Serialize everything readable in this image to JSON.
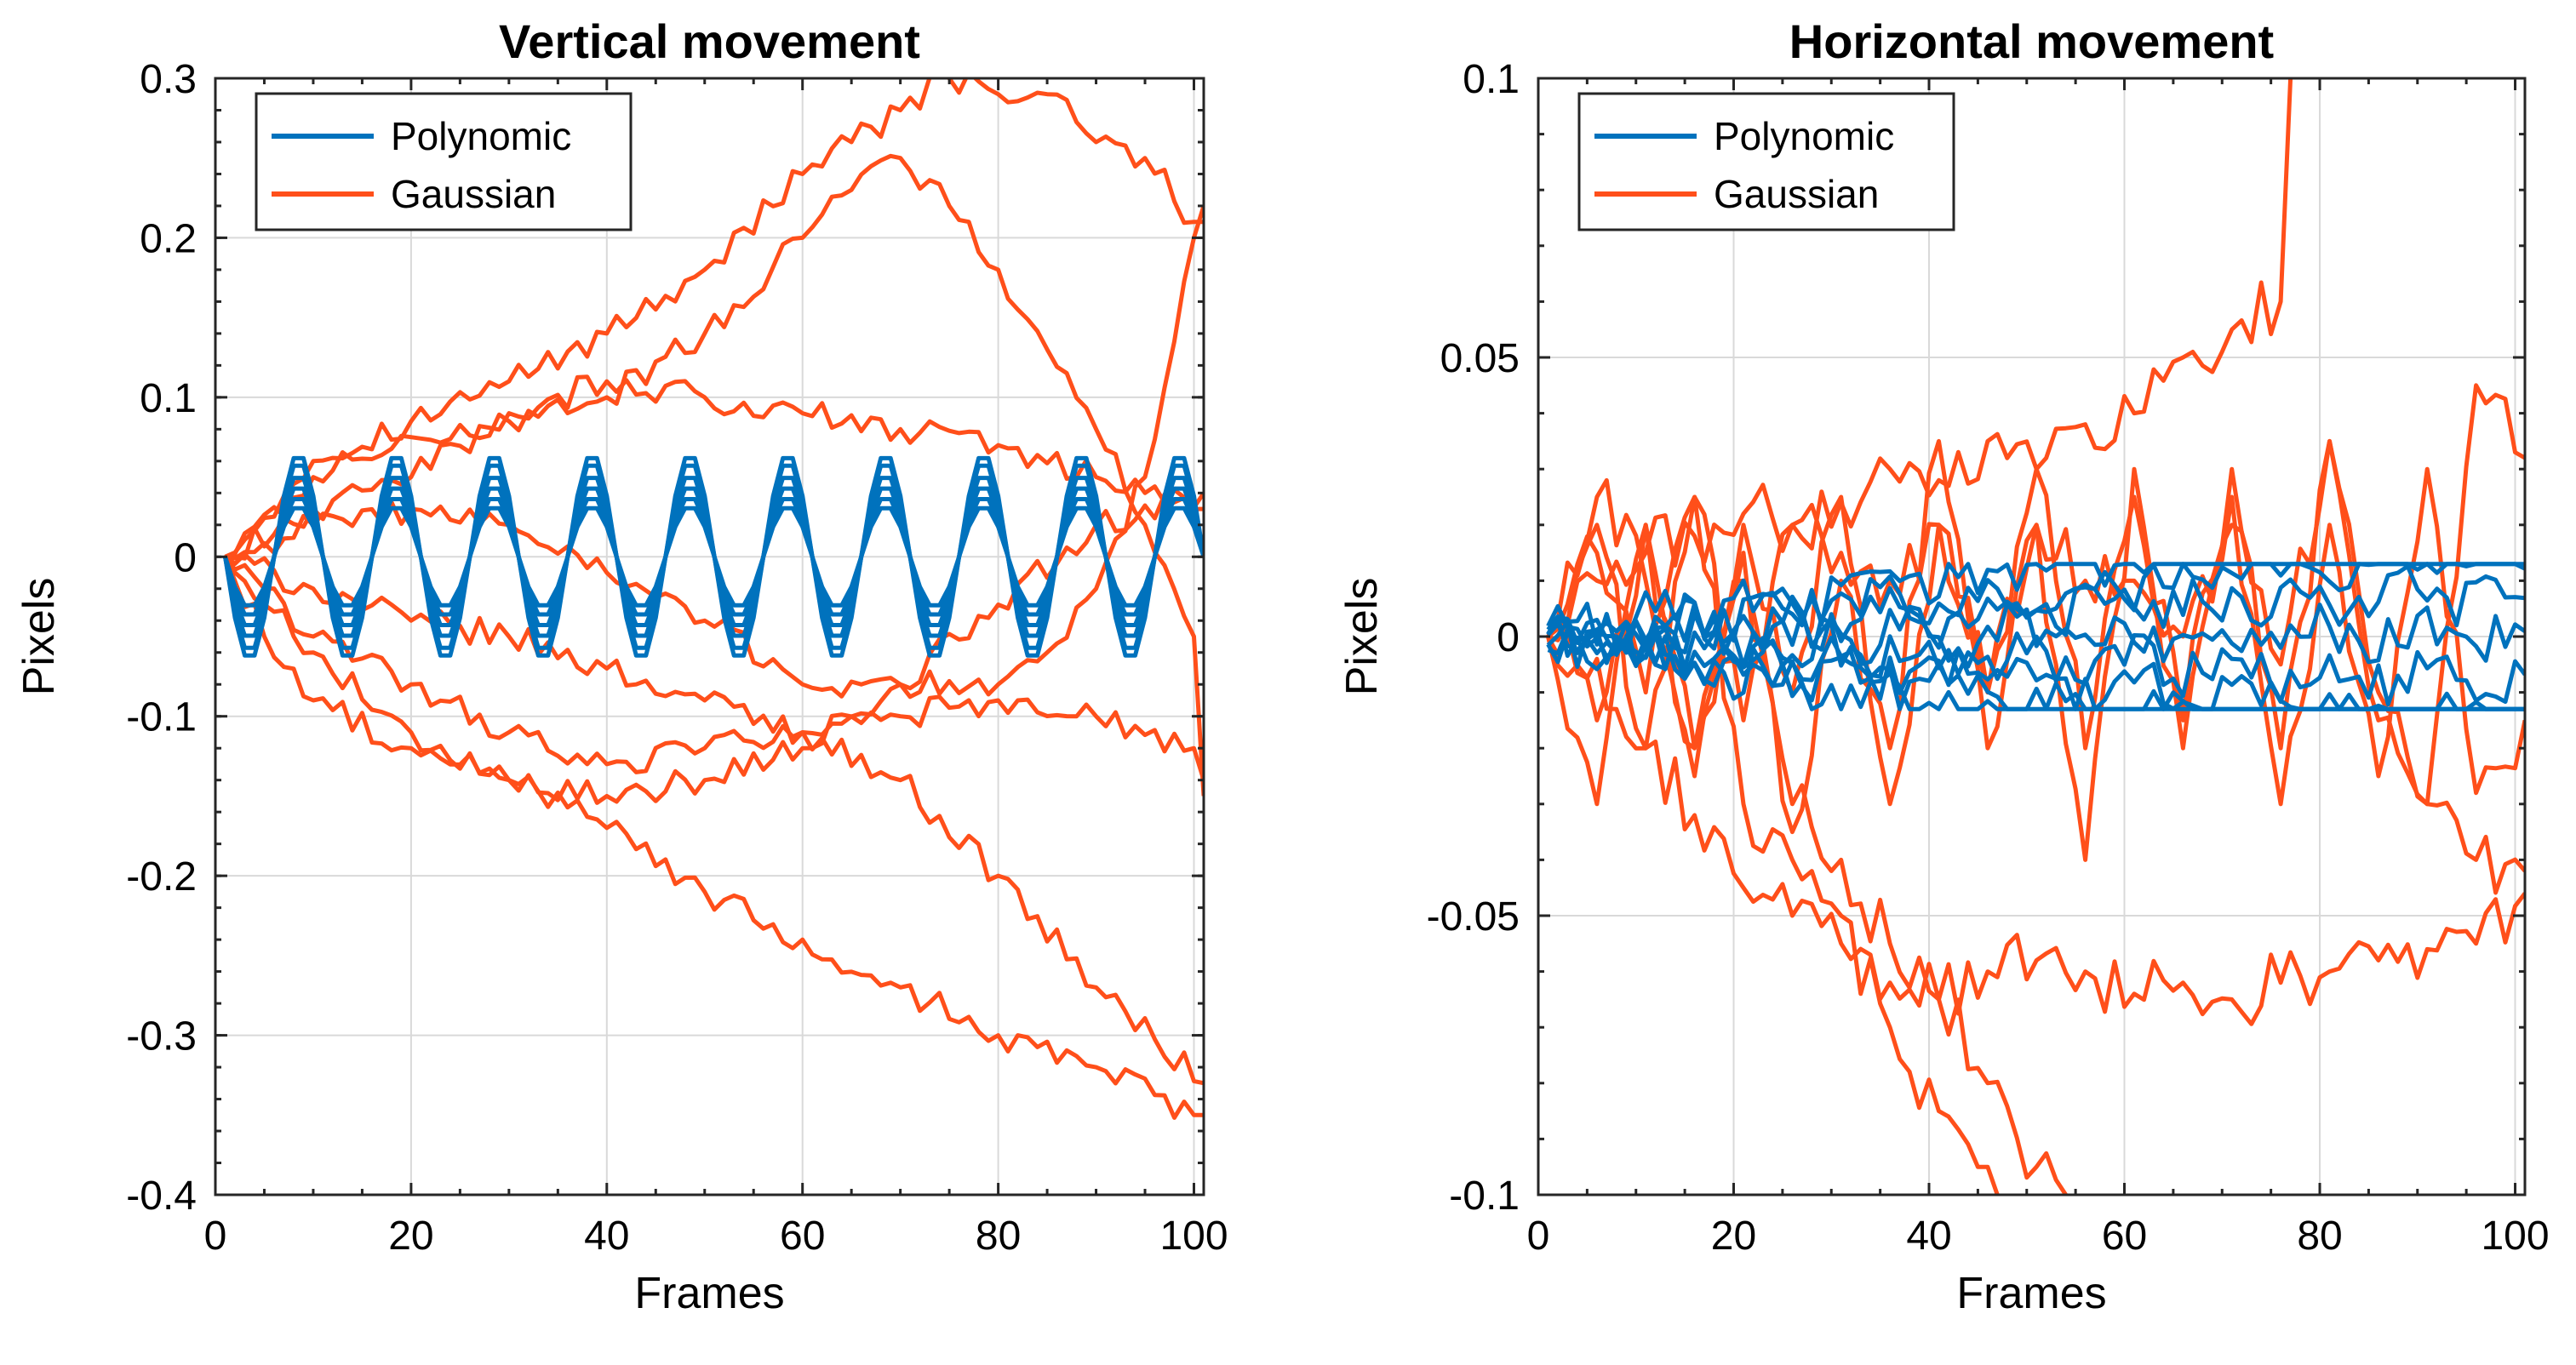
{
  "chart_data": [
    {
      "type": "line",
      "title": "Vertical movement",
      "xlabel": "Frames",
      "ylabel": "Pixels",
      "xlim": [
        0,
        101
      ],
      "ylim": [
        -0.4,
        0.3
      ],
      "xticks": [
        0,
        20,
        40,
        60,
        80,
        100
      ],
      "xtick_labels": [
        "0",
        "20",
        "40",
        "60",
        "80",
        "100"
      ],
      "yticks": [
        -0.4,
        -0.3,
        -0.2,
        -0.1,
        0,
        0.1,
        0.2,
        0.3
      ],
      "ytick_labels": [
        "-0.4",
        "-0.3",
        "-0.2",
        "-0.1",
        "0",
        "0.1",
        "0.2",
        "0.3"
      ],
      "grid": true,
      "legend": {
        "placement": "top-left",
        "entries": [
          {
            "label": "Polynomic",
            "color": "#0072BD"
          },
          {
            "label": "Gaussian",
            "color": "#FF4F1A"
          }
        ]
      },
      "series": [
        {
          "name": "Gaussian",
          "color": "#FF4F1A",
          "x": [
            1,
            10,
            20,
            30,
            40,
            50,
            60,
            65,
            70,
            75,
            80,
            85,
            90,
            95,
            100,
            101
          ],
          "values": [
            0,
            0.06,
            0.085,
            0.11,
            0.14,
            0.18,
            0.24,
            0.26,
            0.28,
            0.3,
            0.29,
            0.29,
            0.26,
            0.25,
            0.21,
            0.21
          ]
        },
        {
          "name": "Gaussian",
          "color": "#FF4F1A",
          "x": [
            1,
            10,
            20,
            30,
            40,
            50,
            60,
            65,
            70,
            75,
            80,
            85,
            90,
            95,
            100,
            101
          ],
          "values": [
            0,
            0.05,
            0.075,
            0.085,
            0.1,
            0.14,
            0.2,
            0.23,
            0.25,
            0.22,
            0.18,
            0.13,
            0.08,
            0.02,
            -0.05,
            -0.15
          ]
        },
        {
          "name": "Gaussian",
          "color": "#FF4F1A",
          "x": [
            1,
            10,
            20,
            30,
            40,
            50,
            60,
            70,
            80,
            90,
            95,
            100,
            101
          ],
          "values": [
            0,
            0.03,
            0.05,
            0.09,
            0.11,
            0.1,
            0.09,
            0.08,
            0.07,
            0.05,
            0.04,
            0.03,
            0.03
          ]
        },
        {
          "name": "Gaussian",
          "color": "#FF4F1A",
          "x": [
            1,
            10,
            20,
            30,
            40,
            50,
            60,
            70,
            80,
            85,
            90,
            95,
            100,
            101
          ],
          "values": [
            0,
            0.02,
            0.03,
            0.02,
            -0.01,
            -0.04,
            -0.08,
            -0.08,
            -0.08,
            -0.06,
            -0.02,
            0.05,
            0.2,
            0.22
          ]
        },
        {
          "name": "Gaussian",
          "color": "#FF4F1A",
          "x": [
            1,
            5,
            10,
            20,
            30,
            40,
            50,
            60,
            70,
            80,
            90,
            100,
            101
          ],
          "values": [
            0,
            -0.02,
            -0.05,
            -0.08,
            -0.11,
            -0.13,
            -0.12,
            -0.11,
            -0.1,
            -0.09,
            -0.1,
            -0.12,
            -0.14
          ]
        },
        {
          "name": "Gaussian",
          "color": "#FF4F1A",
          "x": [
            1,
            5,
            10,
            20,
            30,
            40,
            50,
            60,
            70,
            80,
            90,
            101
          ],
          "values": [
            0,
            -0.05,
            -0.09,
            -0.12,
            -0.14,
            -0.15,
            -0.14,
            -0.12,
            -0.08,
            -0.03,
            0.02,
            0.04
          ]
        },
        {
          "name": "Gaussian",
          "color": "#FF4F1A",
          "x": [
            1,
            5,
            10,
            20,
            30,
            40,
            50,
            60,
            70,
            80,
            90,
            100,
            101
          ],
          "values": [
            0,
            -0.03,
            -0.06,
            -0.11,
            -0.14,
            -0.17,
            -0.21,
            -0.24,
            -0.27,
            -0.3,
            -0.32,
            -0.35,
            -0.35
          ]
        },
        {
          "name": "Gaussian",
          "color": "#FF4F1A",
          "x": [
            1,
            10,
            20,
            30,
            40,
            50,
            60,
            70,
            80,
            90,
            101
          ],
          "values": [
            0,
            -0.02,
            -0.04,
            -0.05,
            -0.07,
            -0.09,
            -0.11,
            -0.14,
            -0.2,
            -0.27,
            -0.33
          ]
        },
        {
          "name": "Polynomic",
          "color": "#0072BD",
          "wave": {
            "amplitude": 0.065,
            "period": 10,
            "phase_frame": 1,
            "frames": [
              1,
              101
            ]
          }
        },
        {
          "name": "Polynomic",
          "color": "#0072BD",
          "wave": {
            "amplitude": 0.06,
            "period": 10,
            "phase_frame": 1,
            "frames": [
              1,
              101
            ]
          }
        },
        {
          "name": "Polynomic",
          "color": "#0072BD",
          "wave": {
            "amplitude": 0.052,
            "period": 10,
            "phase_frame": 1,
            "frames": [
              1,
              101
            ]
          }
        },
        {
          "name": "Polynomic",
          "color": "#0072BD",
          "wave": {
            "amplitude": 0.045,
            "period": 10,
            "phase_frame": 1,
            "frames": [
              1,
              101
            ]
          }
        },
        {
          "name": "Polynomic",
          "color": "#0072BD",
          "wave": {
            "amplitude": 0.038,
            "period": 10,
            "phase_frame": 1,
            "frames": [
              1,
              101
            ]
          }
        },
        {
          "name": "Polynomic",
          "color": "#0072BD",
          "wave": {
            "amplitude": 0.032,
            "period": 10,
            "phase_frame": 1,
            "frames": [
              1,
              101
            ]
          }
        }
      ]
    },
    {
      "type": "line",
      "title": "Horizontal movement",
      "xlabel": "Frames",
      "ylabel": "Pixels",
      "xlim": [
        0,
        101
      ],
      "ylim": [
        -0.1,
        0.1
      ],
      "xticks": [
        0,
        20,
        40,
        60,
        80,
        100
      ],
      "xtick_labels": [
        "0",
        "20",
        "40",
        "60",
        "80",
        "100"
      ],
      "yticks": [
        -0.1,
        -0.05,
        0,
        0.05,
        0.1
      ],
      "ytick_labels": [
        "-0.1",
        "-0.05",
        "0",
        "0.05",
        "0.1"
      ],
      "grid": true,
      "legend": {
        "placement": "top-left",
        "entries": [
          {
            "label": "Polynomic",
            "color": "#0072BD"
          },
          {
            "label": "Gaussian",
            "color": "#FF4F1A"
          }
        ]
      },
      "series": [
        {
          "name": "Gaussian",
          "color": "#FF4F1A",
          "x": [
            1,
            6,
            11,
            16,
            21,
            26,
            31,
            36,
            41,
            46,
            51,
            56,
            61,
            66,
            71,
            76,
            77
          ],
          "values": [
            0,
            0.01,
            0.015,
            0.018,
            0.022,
            0.02,
            0.024,
            0.03,
            0.028,
            0.035,
            0.03,
            0.038,
            0.04,
            0.05,
            0.055,
            0.06,
            0.1
          ]
        },
        {
          "name": "Gaussian",
          "color": "#FF4F1A",
          "x": [
            1,
            6,
            11,
            16,
            21,
            26,
            31,
            36,
            41,
            46,
            51,
            56,
            61,
            66,
            71,
            76,
            81,
            86,
            91,
            96,
            101
          ],
          "values": [
            0,
            -0.004,
            -0.02,
            -0.032,
            -0.045,
            -0.05,
            -0.055,
            -0.062,
            -0.065,
            -0.06,
            -0.058,
            -0.06,
            -0.064,
            -0.062,
            -0.065,
            -0.062,
            -0.06,
            -0.058,
            -0.056,
            -0.055,
            -0.046
          ]
        },
        {
          "name": "Gaussian",
          "color": "#FF4F1A",
          "x": [
            1,
            6,
            11,
            16,
            21,
            26,
            31,
            36,
            41,
            46,
            47
          ],
          "values": [
            0,
            0.02,
            -0.02,
            0.025,
            -0.03,
            -0.04,
            -0.05,
            -0.07,
            -0.085,
            -0.095,
            -0.1
          ]
        },
        {
          "name": "Gaussian",
          "color": "#FF4F1A",
          "x": [
            1,
            6,
            11,
            16,
            21,
            26,
            31,
            36,
            41,
            46,
            51,
            54
          ],
          "values": [
            0,
            -0.015,
            0.02,
            -0.02,
            0.01,
            -0.03,
            -0.04,
            -0.055,
            -0.065,
            -0.08,
            -0.095,
            -0.1
          ]
        },
        {
          "name": "Gaussian",
          "color": "#FF4F1A",
          "x": [
            1,
            6,
            11,
            16,
            21,
            26,
            31,
            36,
            41,
            46,
            51,
            56,
            61,
            66,
            71,
            76,
            81,
            86,
            91,
            96,
            101
          ],
          "values": [
            0,
            0.025,
            0.01,
            -0.02,
            0.02,
            -0.01,
            0.025,
            -0.03,
            0.02,
            -0.01,
            0.03,
            -0.02,
            0.025,
            -0.015,
            0.03,
            -0.02,
            0.035,
            -0.01,
            -0.03,
            0.045,
            0.032
          ]
        },
        {
          "name": "Gaussian",
          "color": "#FF4F1A",
          "x": [
            1,
            6,
            11,
            16,
            21,
            26,
            31,
            36,
            41,
            46,
            51,
            56,
            61,
            66,
            71,
            76,
            81,
            86,
            91,
            96,
            101
          ],
          "values": [
            0,
            -0.03,
            0.02,
            -0.025,
            0.015,
            -0.035,
            0.01,
            -0.02,
            0.035,
            -0.02,
            0.02,
            -0.04,
            0.03,
            -0.02,
            0.025,
            -0.03,
            0.02,
            -0.025,
            0.03,
            -0.028,
            -0.015
          ]
        },
        {
          "name": "Gaussian",
          "color": "#FF4F1A",
          "x": [
            1,
            6,
            11,
            16,
            21,
            26,
            31,
            36,
            41,
            46,
            51,
            56,
            61,
            66,
            71,
            76,
            81,
            86,
            91,
            96,
            101
          ],
          "values": [
            0,
            0.015,
            -0.01,
            0.025,
            -0.015,
            0.02,
            0.015,
            0.01,
            0.02,
            -0.01,
            0.02,
            0.01,
            0.01,
            0.0,
            0.02,
            -0.005,
            0.035,
            -0.015,
            -0.03,
            -0.04,
            -0.042
          ]
        }
      ],
      "polynomic_band": {
        "count": 8,
        "color": "#0072BD",
        "range": [
          -0.01,
          0.01
        ]
      }
    }
  ]
}
